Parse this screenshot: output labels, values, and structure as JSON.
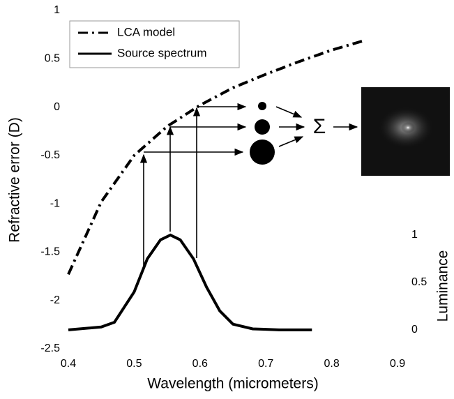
{
  "chart_data": {
    "type": "line",
    "x_label": "Wavelength (micrometers)",
    "y_label": "Refractive error (D)",
    "y2_label": "Luminance",
    "annotations": {
      "sum_symbol": "Σ"
    },
    "xlim": [
      0.4,
      0.9
    ],
    "xticks": [
      0.4,
      0.5,
      0.6,
      0.7,
      0.8,
      0.9
    ],
    "ylim": [
      -2.5,
      1
    ],
    "yticks": [
      1,
      0.5,
      0,
      -0.5,
      -1,
      -1.5,
      -2,
      -2.5
    ],
    "y2lim": [
      -0.2,
      3.37
    ],
    "y2ticks": [
      0,
      0.5,
      1
    ],
    "legend": "upper left",
    "series": [
      {
        "name": "LCA model",
        "color": "#000000",
        "style": "dash-dot",
        "x": [
          0.4,
          0.45,
          0.5,
          0.55,
          0.6,
          0.65,
          0.7,
          0.75,
          0.8,
          0.85
        ],
        "values": [
          -1.73,
          -0.98,
          -0.5,
          -0.2,
          0.02,
          0.2,
          0.34,
          0.47,
          0.59,
          0.69
        ]
      },
      {
        "name": "Source spectrum",
        "color": "#000000",
        "style": "solid",
        "axis": "y2",
        "x": [
          0.4,
          0.45,
          0.47,
          0.5,
          0.52,
          0.54,
          0.555,
          0.57,
          0.59,
          0.61,
          0.63,
          0.65,
          0.68,
          0.72,
          0.77
        ],
        "values": [
          0,
          0.03,
          0.08,
          0.4,
          0.75,
          0.95,
          1.0,
          0.95,
          0.75,
          0.45,
          0.2,
          0.06,
          0.01,
          0,
          0
        ]
      }
    ]
  }
}
